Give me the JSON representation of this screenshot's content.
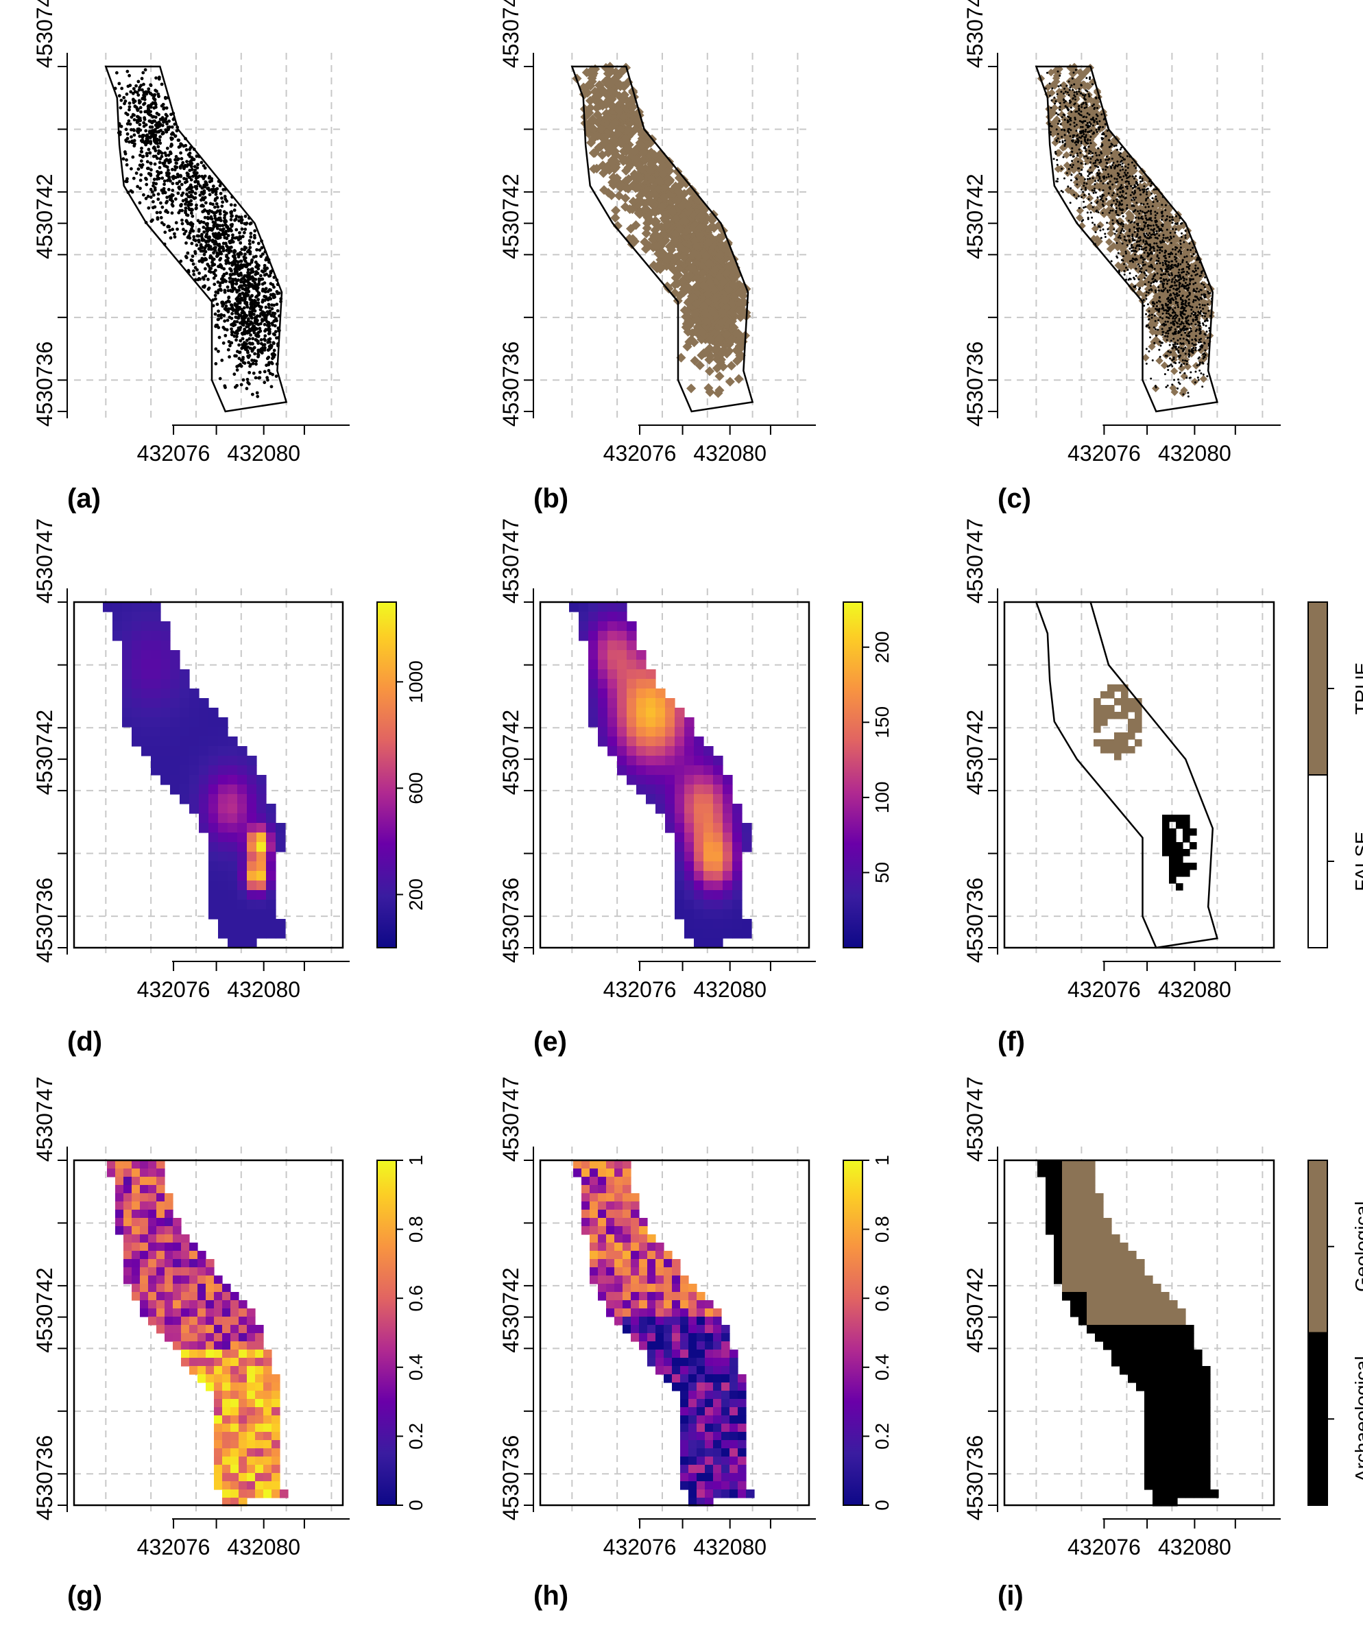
{
  "colors": {
    "brown": "#8b7355",
    "black": "#000000",
    "grid": "#c8c8c8",
    "plasma_low": "#0d1a8a",
    "plasma_mid": "#e0307a",
    "plasma_high": "#fff700"
  },
  "axes": {
    "x_ticks": [
      "432076",
      "432080"
    ],
    "y_ticks": [
      "4530736",
      "4530742",
      "4530747"
    ]
  },
  "chart_data": [
    {
      "id": "a",
      "label": "(a)",
      "type": "scatter",
      "points": "black",
      "xlim": [
        432072,
        432084
      ],
      "ylim": [
        4530736,
        4530747
      ],
      "x_ticks": [
        432076,
        432080
      ],
      "y_ticks": [
        4530736,
        4530742,
        4530747
      ]
    },
    {
      "id": "b",
      "label": "(b)",
      "type": "scatter",
      "points": "brown",
      "xlim": [
        432072,
        432084
      ],
      "ylim": [
        4530736,
        4530747
      ],
      "x_ticks": [
        432076,
        432080
      ],
      "y_ticks": [
        4530736,
        4530742,
        4530747
      ]
    },
    {
      "id": "c",
      "label": "(c)",
      "type": "scatter",
      "points": "brown+black",
      "xlim": [
        432072,
        432084
      ],
      "ylim": [
        4530736,
        4530747
      ],
      "x_ticks": [
        432076,
        432080
      ],
      "y_ticks": [
        4530736,
        4530742,
        4530747
      ]
    },
    {
      "id": "d",
      "label": "(d)",
      "type": "heatmap",
      "legend_ticks": [
        "200",
        "600",
        "1000"
      ],
      "legend_range": [
        0,
        1300
      ],
      "x_ticks": [
        432076,
        432080
      ],
      "y_ticks": [
        4530736,
        4530742,
        4530747
      ]
    },
    {
      "id": "e",
      "label": "(e)",
      "type": "heatmap",
      "legend_ticks": [
        "50",
        "100",
        "150",
        "200"
      ],
      "legend_range": [
        0,
        230
      ],
      "x_ticks": [
        432076,
        432080
      ],
      "y_ticks": [
        4530736,
        4530742,
        4530747
      ]
    },
    {
      "id": "f",
      "label": "(f)",
      "type": "heatmap",
      "legend_categories": [
        "FALSE",
        "TRUE"
      ],
      "x_ticks": [
        432076,
        432080
      ],
      "y_ticks": [
        4530736,
        4530742,
        4530747
      ]
    },
    {
      "id": "g",
      "label": "(g)",
      "type": "heatmap",
      "legend_ticks": [
        "0",
        "0.2",
        "0.4",
        "0.6",
        "0.8",
        "1"
      ],
      "legend_range": [
        0,
        1
      ],
      "x_ticks": [
        432076,
        432080
      ],
      "y_ticks": [
        4530736,
        4530742,
        4530747
      ]
    },
    {
      "id": "h",
      "label": "(h)",
      "type": "heatmap",
      "legend_ticks": [
        "0",
        "0.2",
        "0.4",
        "0.6",
        "0.8",
        "1"
      ],
      "legend_range": [
        0,
        1
      ],
      "x_ticks": [
        432076,
        432080
      ],
      "y_ticks": [
        4530736,
        4530742,
        4530747
      ]
    },
    {
      "id": "i",
      "label": "(i)",
      "type": "heatmap",
      "legend_categories": [
        "Archaeological",
        "Geological"
      ],
      "x_ticks": [
        432076,
        432080
      ],
      "y_ticks": [
        4530736,
        4530742,
        4530747
      ]
    }
  ]
}
